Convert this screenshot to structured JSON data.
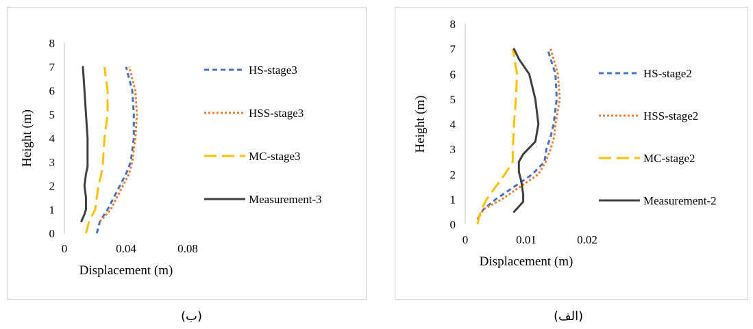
{
  "captions": {
    "left": "(ب)",
    "right": "(الف)"
  },
  "chart_data": [
    {
      "type": "line",
      "panel": "left",
      "xlabel": "Displacement (m)",
      "ylabel": "Height (m)",
      "xlim": [
        0,
        0.08
      ],
      "ylim": [
        0,
        8
      ],
      "xticks": [
        0,
        0.04,
        0.08
      ],
      "xtick_labels": [
        "0",
        "0.04",
        "0.08"
      ],
      "yticks": [
        0,
        1,
        2,
        3,
        4,
        5,
        6,
        7,
        8
      ],
      "ytick_labels": [
        "0",
        "1",
        "2",
        "3",
        "4",
        "5",
        "6",
        "7",
        "8"
      ],
      "grid": false,
      "legend_position": "right",
      "series": [
        {
          "name": "HS-stage3",
          "color": "#4472C4",
          "dash": "7,5",
          "x": [
            0.021,
            0.023,
            0.028,
            0.032,
            0.036,
            0.04,
            0.043,
            0.045,
            0.045,
            0.044,
            0.04
          ],
          "y": [
            0,
            0.5,
            1,
            1.5,
            2,
            2.5,
            3,
            4,
            5,
            6,
            7
          ]
        },
        {
          "name": "HSS-stage3",
          "color": "#ED7D31",
          "dash": "3,3",
          "x": [
            0.023,
            0.026,
            0.03,
            0.034,
            0.038,
            0.042,
            0.044,
            0.046,
            0.047,
            0.046,
            0.042
          ],
          "y": [
            0.5,
            0.7,
            1,
            1.5,
            2,
            2.5,
            3,
            4,
            5,
            6,
            7
          ]
        },
        {
          "name": "MC-stage3",
          "color": "#FFC000",
          "dash": "18,8",
          "x": [
            0.014,
            0.016,
            0.02,
            0.021,
            0.022,
            0.024,
            0.025,
            0.026,
            0.028,
            0.028,
            0.026
          ],
          "y": [
            0,
            0.5,
            1,
            1.5,
            2,
            2.5,
            3,
            4,
            5,
            6,
            7
          ]
        },
        {
          "name": "Measurement-3",
          "color": "#404040",
          "dash": "",
          "x": [
            0.011,
            0.013,
            0.014,
            0.014,
            0.013,
            0.014,
            0.015,
            0.015,
            0.015,
            0.014,
            0.013,
            0.012
          ],
          "y": [
            0.5,
            0.8,
            1,
            1.5,
            2,
            2.5,
            2.8,
            3,
            4,
            5,
            6,
            7
          ]
        }
      ]
    },
    {
      "type": "line",
      "panel": "right",
      "xlabel": "Displacement (m)",
      "ylabel": "Height (m)",
      "xlim": [
        0,
        0.02
      ],
      "ylim": [
        0,
        8
      ],
      "xticks": [
        0,
        0.01,
        0.02
      ],
      "xtick_labels": [
        "0",
        "0.01",
        "0.02"
      ],
      "yticks": [
        0,
        1,
        2,
        3,
        4,
        5,
        6,
        7,
        8
      ],
      "ytick_labels": [
        "0",
        "1",
        "2",
        "3",
        "4",
        "5",
        "6",
        "7",
        "8"
      ],
      "grid": false,
      "legend_position": "right",
      "series": [
        {
          "name": "HS-stage2",
          "color": "#4472C4",
          "dash": "7,5",
          "x": [
            0.002,
            0.003,
            0.005,
            0.008,
            0.011,
            0.013,
            0.0133,
            0.014,
            0.0145,
            0.015,
            0.0148,
            0.0135
          ],
          "y": [
            0.2,
            0.6,
            1,
            1.5,
            2,
            2.5,
            3,
            3.5,
            4,
            5,
            6,
            7
          ]
        },
        {
          "name": "HSS-stage2",
          "color": "#ED7D31",
          "dash": "3,3",
          "x": [
            0.002,
            0.003,
            0.006,
            0.009,
            0.012,
            0.0132,
            0.014,
            0.0146,
            0.0148,
            0.0155,
            0.0152,
            0.014
          ],
          "y": [
            0.2,
            0.6,
            1,
            1.5,
            2,
            2.5,
            3,
            3.5,
            4,
            5,
            6,
            7
          ]
        },
        {
          "name": "MC-stage2",
          "color": "#FFC000",
          "dash": "18,8",
          "x": [
            0.002,
            0.0025,
            0.0035,
            0.005,
            0.0065,
            0.0078,
            0.0078,
            0.008,
            0.0083,
            0.0085,
            0.0078
          ],
          "y": [
            0,
            0.5,
            1,
            1.5,
            2,
            2.5,
            3,
            4,
            5,
            6,
            7
          ]
        },
        {
          "name": "Measurement-2",
          "color": "#404040",
          "dash": "",
          "x": [
            0.008,
            0.0095,
            0.0095,
            0.0092,
            0.0088,
            0.0088,
            0.0095,
            0.0115,
            0.012,
            0.0115,
            0.0105,
            0.0088,
            0.008
          ],
          "y": [
            0.5,
            0.9,
            1.2,
            1.7,
            2.1,
            2.5,
            2.8,
            3.3,
            4,
            5,
            6,
            6.6,
            7
          ]
        }
      ]
    }
  ]
}
